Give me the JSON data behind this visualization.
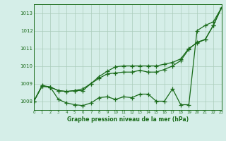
{
  "x": [
    0,
    1,
    2,
    3,
    4,
    5,
    6,
    7,
    8,
    9,
    10,
    11,
    12,
    13,
    14,
    15,
    16,
    17,
    18,
    19,
    20,
    21,
    22,
    23
  ],
  "line1": [
    1008.0,
    1008.9,
    1008.8,
    1008.1,
    1007.9,
    1007.8,
    1007.75,
    1007.9,
    1008.2,
    1008.25,
    1008.1,
    1008.25,
    1008.2,
    1008.4,
    1008.4,
    1008.0,
    1008.0,
    1008.7,
    1007.8,
    1007.8,
    1012.0,
    1012.3,
    1012.5,
    1013.3
  ],
  "line2": [
    1008.0,
    1008.85,
    1008.8,
    1008.6,
    1008.55,
    1008.6,
    1008.6,
    1009.0,
    1009.3,
    1009.55,
    1009.6,
    1009.65,
    1009.65,
    1009.75,
    1009.65,
    1009.65,
    1009.8,
    1010.0,
    1010.3,
    1010.95,
    1011.35,
    1011.5,
    1012.3,
    1013.3
  ],
  "line3": [
    1008.0,
    1008.85,
    1008.8,
    1008.6,
    1008.55,
    1008.6,
    1008.7,
    1009.0,
    1009.4,
    1009.7,
    1009.95,
    1010.0,
    1010.0,
    1010.0,
    1010.0,
    1010.0,
    1010.1,
    1010.2,
    1010.4,
    1011.0,
    1011.3,
    1011.5,
    1012.3,
    1013.3
  ],
  "bg_color": "#d5eee8",
  "line_color": "#1a6b1a",
  "grid_color": "#aaccbb",
  "xlabel": "Graphe pression niveau de la mer (hPa)",
  "ylabel_ticks": [
    1008,
    1009,
    1010,
    1011,
    1012,
    1013
  ],
  "xlim": [
    0,
    23
  ],
  "ylim": [
    1007.5,
    1013.5
  ],
  "marker": "+",
  "markersize": 4,
  "linewidth": 0.9
}
